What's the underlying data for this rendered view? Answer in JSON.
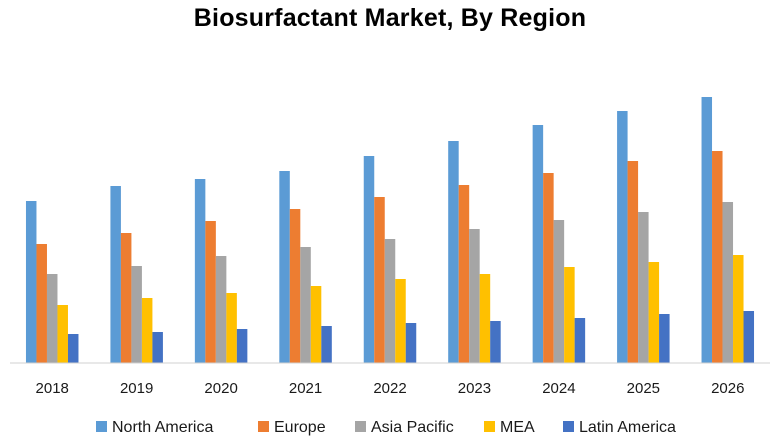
{
  "chart_data": {
    "type": "bar",
    "title": "Biosurfactant Market, By Region",
    "xlabel": "",
    "ylabel": "",
    "categories": [
      "2018",
      "2019",
      "2020",
      "2021",
      "2022",
      "2023",
      "2024",
      "2025",
      "2026"
    ],
    "series": [
      {
        "name": "North America",
        "color": "#5B9BD5",
        "values": [
          162,
          177,
          184,
          192,
          207,
          222,
          238,
          252,
          266
        ]
      },
      {
        "name": "Europe",
        "color": "#ED7D31",
        "values": [
          119,
          130,
          142,
          154,
          166,
          178,
          190,
          202,
          212
        ]
      },
      {
        "name": "Asia Pacific",
        "color": "#A5A5A5",
        "values": [
          89,
          97,
          107,
          116,
          124,
          134,
          143,
          151,
          161
        ]
      },
      {
        "name": "MEA",
        "color": "#FFC000",
        "values": [
          58,
          65,
          70,
          77,
          84,
          89,
          96,
          101,
          108
        ]
      },
      {
        "name": "Latin America",
        "color": "#4472C4",
        "values": [
          29,
          31,
          34,
          37,
          40,
          42,
          45,
          49,
          52
        ]
      }
    ],
    "ylim": [
      0,
      270
    ],
    "y_axis_visible": false,
    "grid": false,
    "legend_position": "bottom"
  }
}
